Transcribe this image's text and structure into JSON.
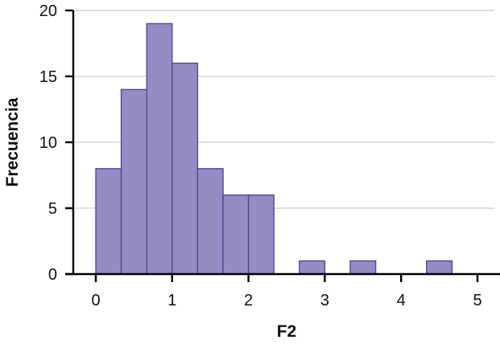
{
  "chart_data": {
    "type": "bar",
    "subtype": "histogram",
    "title": "",
    "xlabel": "F2",
    "ylabel": "Frecuencia",
    "xlim": [
      0,
      5
    ],
    "ylim": [
      0,
      20
    ],
    "x_ticks": [
      "0",
      "1",
      "2",
      "3",
      "4",
      "5"
    ],
    "y_ticks": [
      "0",
      "5",
      "10",
      "15",
      "20"
    ],
    "grid": "horizontal",
    "bin_width": 0.3333,
    "bins": [
      {
        "start": 0.0,
        "end": 0.333,
        "count": 8
      },
      {
        "start": 0.333,
        "end": 0.667,
        "count": 14
      },
      {
        "start": 0.667,
        "end": 1.0,
        "count": 19
      },
      {
        "start": 1.0,
        "end": 1.333,
        "count": 16
      },
      {
        "start": 1.333,
        "end": 1.667,
        "count": 8
      },
      {
        "start": 1.667,
        "end": 2.0,
        "count": 6
      },
      {
        "start": 2.0,
        "end": 2.333,
        "count": 6
      },
      {
        "start": 2.333,
        "end": 2.667,
        "count": 0
      },
      {
        "start": 2.667,
        "end": 3.0,
        "count": 1
      },
      {
        "start": 3.0,
        "end": 3.333,
        "count": 0
      },
      {
        "start": 3.333,
        "end": 3.667,
        "count": 1
      },
      {
        "start": 3.667,
        "end": 4.0,
        "count": 0
      },
      {
        "start": 4.0,
        "end": 4.333,
        "count": 0
      },
      {
        "start": 4.333,
        "end": 4.667,
        "count": 1
      },
      {
        "start": 4.667,
        "end": 5.0,
        "count": 0
      }
    ],
    "colors": {
      "bar_fill": "#958cc3",
      "bar_stroke": "#514899",
      "grid": "#cccccc",
      "axis": "#000000"
    }
  }
}
